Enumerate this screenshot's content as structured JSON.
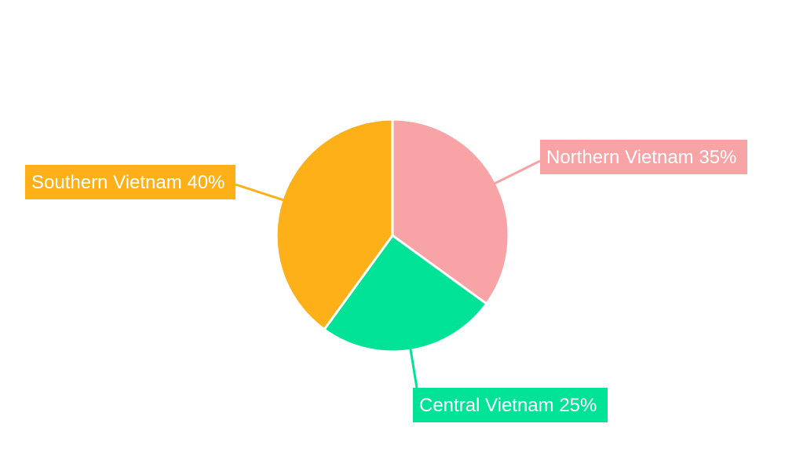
{
  "chart_data": {
    "type": "pie",
    "categories": [
      "Northern Vietnam",
      "Central Vietnam",
      "Southern Vietnam"
    ],
    "values": [
      35,
      25,
      40
    ],
    "unit": "%",
    "colors": [
      "#F8A3A6",
      "#00E396",
      "#FEB019"
    ],
    "labels": [
      "Northern Vietnam 35%",
      "Central Vietnam 25%",
      "Southern Vietnam 40%"
    ],
    "start_angle": "top, clockwise",
    "legend": "none"
  }
}
